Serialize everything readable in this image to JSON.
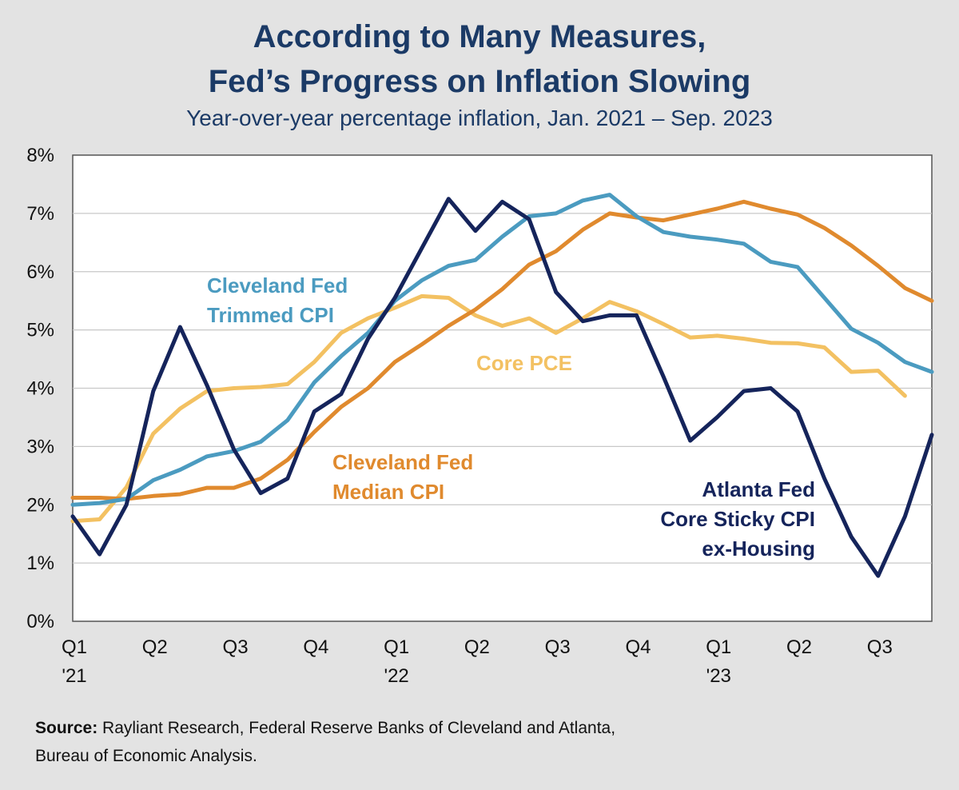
{
  "header": {
    "title_line1": "According to Many Measures,",
    "title_line2": "Fed’s Progress on Inflation Slowing",
    "subtitle": "Year-over-year percentage inflation, Jan. 2021 – Sep. 2023"
  },
  "source": {
    "label": "Source:",
    "text": " Rayliant Research, Federal Reserve Banks of Cleveland and Atlanta,",
    "text2": "Bureau of Economic Analysis."
  },
  "chart_data": {
    "type": "line",
    "title": "According to Many Measures, Fed’s Progress on Inflation Slowing",
    "subtitle": "Year-over-year percentage inflation, Jan. 2021 – Sep. 2023",
    "xlabel": "",
    "ylabel": "",
    "ylim": [
      0,
      8
    ],
    "yticks": [
      "0%",
      "1%",
      "2%",
      "3%",
      "4%",
      "5%",
      "6%",
      "7%",
      "8%"
    ],
    "xticks": [
      {
        "month_index": 0,
        "label": "Q1",
        "sublabel": "'21"
      },
      {
        "month_index": 3,
        "label": "Q2",
        "sublabel": ""
      },
      {
        "month_index": 6,
        "label": "Q3",
        "sublabel": ""
      },
      {
        "month_index": 9,
        "label": "Q4",
        "sublabel": ""
      },
      {
        "month_index": 12,
        "label": "Q1",
        "sublabel": "'22"
      },
      {
        "month_index": 15,
        "label": "Q2",
        "sublabel": ""
      },
      {
        "month_index": 18,
        "label": "Q3",
        "sublabel": ""
      },
      {
        "month_index": 21,
        "label": "Q4",
        "sublabel": ""
      },
      {
        "month_index": 24,
        "label": "Q1",
        "sublabel": "'23"
      },
      {
        "month_index": 27,
        "label": "Q2",
        "sublabel": ""
      },
      {
        "month_index": 30,
        "label": "Q3",
        "sublabel": ""
      }
    ],
    "x_range": [
      0,
      32
    ],
    "grid": true,
    "series": [
      {
        "name": "Atlanta Fed Core Sticky CPI ex-Housing",
        "label_lines": [
          "Atlanta Fed",
          "Core Sticky CPI",
          "ex-Housing"
        ],
        "color": "#15245b",
        "values": [
          1.8,
          1.15,
          2.0,
          3.95,
          5.05,
          4.05,
          2.95,
          2.2,
          2.45,
          3.6,
          3.9,
          4.85,
          5.55,
          6.4,
          7.25,
          6.7,
          7.2,
          6.9,
          5.65,
          5.15,
          5.25,
          5.25,
          4.2,
          3.1,
          3.5,
          3.95,
          4.0,
          3.6,
          2.45,
          1.45,
          0.78,
          1.8,
          3.2
        ]
      },
      {
        "name": "Cleveland Fed Trimmed CPI",
        "label_lines": [
          "Cleveland Fed",
          "Trimmed CPI"
        ],
        "color": "#4b9bc0",
        "values": [
          2.0,
          2.03,
          2.1,
          2.42,
          2.6,
          2.83,
          2.92,
          3.08,
          3.45,
          4.1,
          4.55,
          4.95,
          5.5,
          5.85,
          6.1,
          6.2,
          6.6,
          6.95,
          7.0,
          7.22,
          7.32,
          6.95,
          6.68,
          6.6,
          6.55,
          6.48,
          6.17,
          6.08,
          5.55,
          5.02,
          4.78,
          4.45,
          4.28
        ]
      },
      {
        "name": "Core PCE",
        "label_lines": [
          "Core PCE"
        ],
        "color": "#f3c162",
        "values": [
          1.72,
          1.75,
          2.3,
          3.22,
          3.65,
          3.95,
          4.0,
          4.02,
          4.07,
          4.45,
          4.95,
          5.2,
          5.38,
          5.58,
          5.55,
          5.25,
          5.07,
          5.2,
          4.95,
          5.2,
          5.48,
          5.32,
          5.1,
          4.87,
          4.9,
          4.85,
          4.78,
          4.77,
          4.7,
          4.28,
          4.3,
          3.87
        ]
      },
      {
        "name": "Cleveland Fed Median CPI",
        "label_lines": [
          "Cleveland Fed",
          "Median CPI"
        ],
        "color": "#e08a2e",
        "values": [
          2.12,
          2.12,
          2.1,
          2.15,
          2.18,
          2.29,
          2.29,
          2.45,
          2.77,
          3.25,
          3.68,
          4.0,
          4.45,
          4.75,
          5.07,
          5.35,
          5.7,
          6.12,
          6.35,
          6.72,
          7.0,
          6.93,
          6.88,
          6.98,
          7.08,
          7.2,
          7.08,
          6.98,
          6.75,
          6.45,
          6.1,
          5.72,
          5.5
        ]
      }
    ]
  }
}
